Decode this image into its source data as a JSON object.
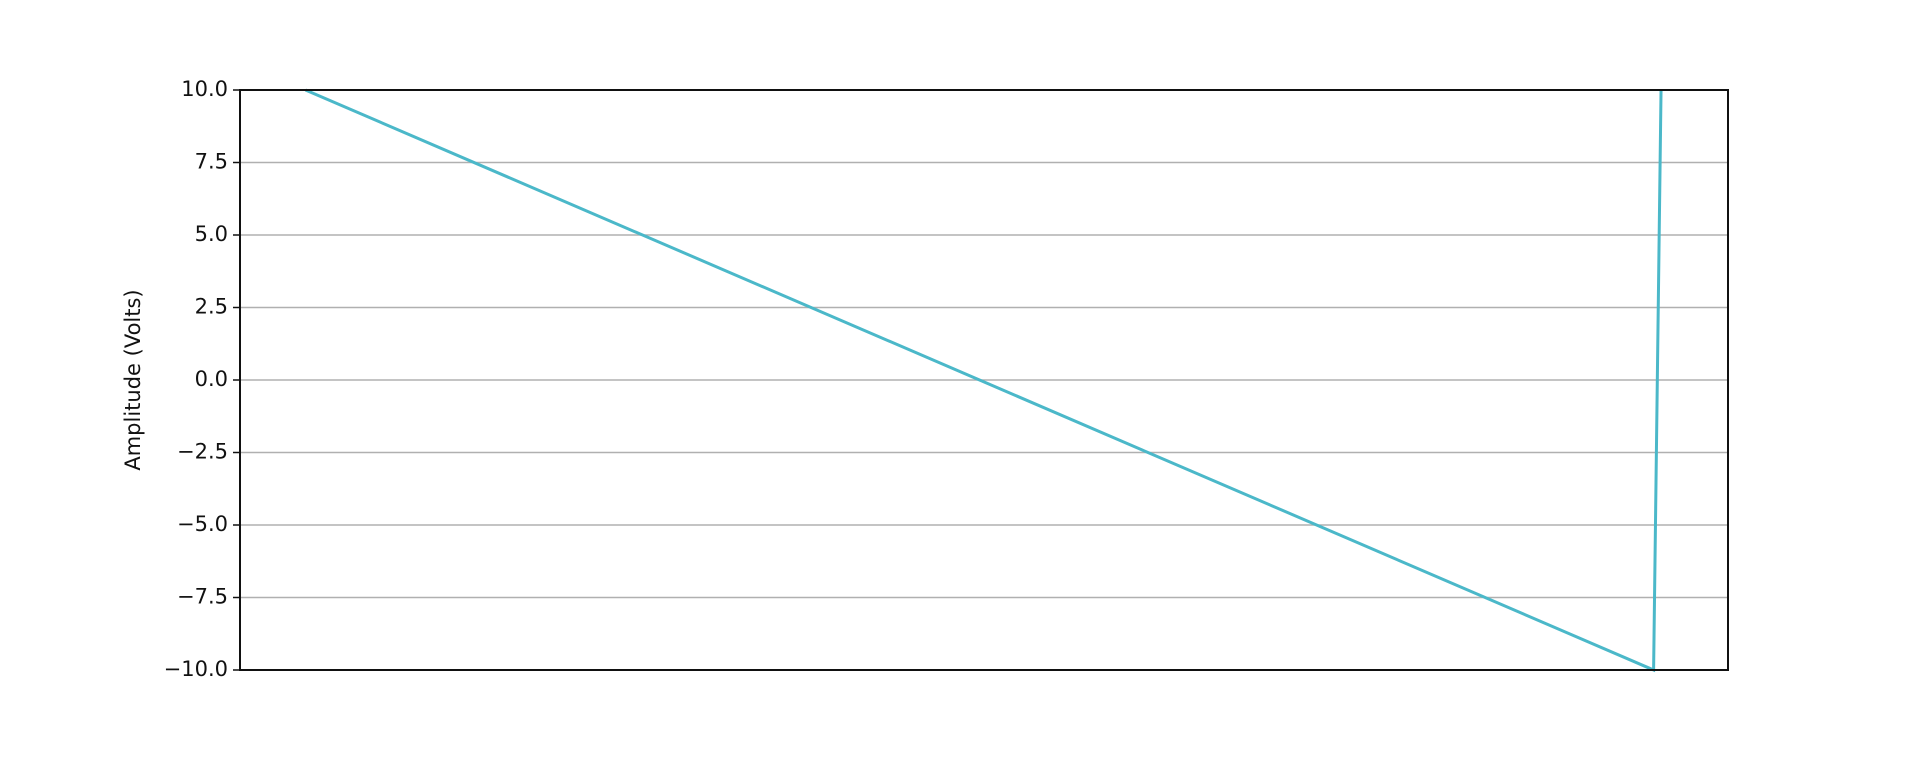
{
  "chart_data": {
    "type": "line",
    "y_label": "Amplitude (Volts)",
    "x": [
      0.044,
      0.95,
      0.955
    ],
    "xlim": [
      0,
      1
    ],
    "series": [
      {
        "color": "#4bb8c9",
        "values": [
          10,
          -10,
          10
        ]
      }
    ],
    "ylim": [
      -10,
      10
    ],
    "yticks": [
      {
        "value": -10,
        "label": "−10.0"
      },
      {
        "value": -7.5,
        "label": "−7.5"
      },
      {
        "value": -5,
        "label": "−5.0"
      },
      {
        "value": -2.5,
        "label": "−2.5"
      },
      {
        "value": 0,
        "label": "0.0"
      },
      {
        "value": 2.5,
        "label": "2.5"
      },
      {
        "value": 5,
        "label": "5.0"
      },
      {
        "value": 7.5,
        "label": "7.5"
      },
      {
        "value": 10,
        "label": "10.0"
      }
    ],
    "grid": true
  }
}
